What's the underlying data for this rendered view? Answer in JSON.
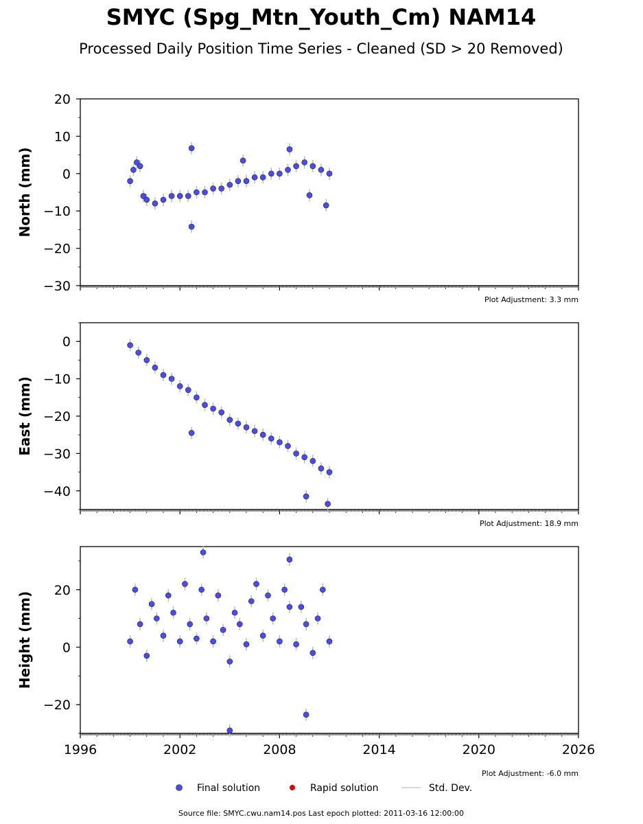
{
  "figure": {
    "title": "SMYC (Spg_Mtn_Youth_Cm) NAM14",
    "subtitle": "Processed Daily Position Time Series - Cleaned (SD > 20 Removed)",
    "source_note": "Source file: SMYC.cwu.nam14.pos  Last epoch plotted: 2011-03-16 12:00:00"
  },
  "legend": {
    "final": "Final solution",
    "rapid": "Rapid solution",
    "std": "Std. Dev."
  },
  "colors": {
    "final": "#4b4bf5",
    "rapid": "#e00000",
    "std": "#bbbbbb"
  },
  "chart_data": [
    {
      "type": "scatter",
      "ylabel": "North (mm)",
      "adjustment": "Plot Adjustment: 3.3 mm",
      "xlim": [
        1996,
        2026
      ],
      "ylim": [
        -30,
        20
      ],
      "yticks": [
        20,
        10,
        0,
        -10,
        -20,
        -30
      ],
      "ytick_labels": [
        "20",
        "10",
        "0",
        "−10",
        "−20",
        "−30"
      ],
      "series": [
        {
          "name": "Final solution",
          "x": [
            1999.0,
            1999.2,
            1999.4,
            1999.6,
            1999.8,
            2000.0,
            2000.5,
            2001.0,
            2001.5,
            2002.0,
            2002.5,
            2003.0,
            2003.5,
            2004.0,
            2004.5,
            2005.0,
            2005.5,
            2006.0,
            2006.5,
            2007.0,
            2007.5,
            2008.0,
            2008.5,
            2009.0,
            2009.5,
            2010.0,
            2010.5,
            2011.0,
            2002.7,
            2002.7,
            2005.8,
            2008.6,
            2009.8,
            2010.8
          ],
          "y": [
            -2,
            1,
            3,
            2,
            -6,
            -7,
            -8,
            -7,
            -6,
            -6,
            -6,
            -5,
            -5,
            -4,
            -4,
            -3,
            -2,
            -2,
            -1,
            -1,
            0,
            0,
            1,
            2,
            3,
            2,
            1,
            0,
            6.8,
            -14.2,
            3.5,
            6.5,
            -5.8,
            -8.5
          ]
        }
      ]
    },
    {
      "type": "scatter",
      "ylabel": "East (mm)",
      "adjustment": "Plot Adjustment: 18.9 mm",
      "xlim": [
        1996,
        2026
      ],
      "ylim": [
        -45,
        5
      ],
      "yticks": [
        0,
        -10,
        -20,
        -30,
        -40
      ],
      "ytick_labels": [
        "0",
        "−10",
        "−20",
        "−30",
        "−40"
      ],
      "series": [
        {
          "name": "Final solution",
          "x": [
            1999.0,
            1999.5,
            2000.0,
            2000.5,
            2001.0,
            2001.5,
            2002.0,
            2002.5,
            2003.0,
            2003.5,
            2004.0,
            2004.5,
            2005.0,
            2005.5,
            2006.0,
            2006.5,
            2007.0,
            2007.5,
            2008.0,
            2008.5,
            2009.0,
            2009.5,
            2010.0,
            2010.5,
            2011.0,
            2002.7,
            2009.6,
            2010.9
          ],
          "y": [
            -1,
            -3,
            -5,
            -7,
            -9,
            -10,
            -12,
            -13,
            -15,
            -17,
            -18,
            -19,
            -21,
            -22,
            -23,
            -24,
            -25,
            -26,
            -27,
            -28,
            -30,
            -31,
            -32,
            -34,
            -35,
            -24.5,
            -41.5,
            -43.5
          ]
        }
      ]
    },
    {
      "type": "scatter",
      "ylabel": "Height (mm)",
      "adjustment": "Plot Adjustment: -6.0 mm",
      "xlim": [
        1996,
        2026
      ],
      "ylim": [
        -30,
        35
      ],
      "yticks": [
        20,
        0,
        -20
      ],
      "ytick_labels": [
        "20",
        "0",
        "−20"
      ],
      "xticks": [
        1996,
        2002,
        2008,
        2014,
        2020,
        2026
      ],
      "xtick_labels": [
        "1996",
        "2002",
        "2008",
        "2014",
        "2020",
        "2026"
      ],
      "series": [
        {
          "name": "Final solution",
          "x": [
            1999.0,
            1999.3,
            1999.6,
            2000.0,
            2000.3,
            2000.6,
            2001.0,
            2001.3,
            2001.6,
            2002.0,
            2002.3,
            2002.6,
            2003.0,
            2003.3,
            2003.6,
            2004.0,
            2004.3,
            2004.6,
            2005.0,
            2005.3,
            2005.6,
            2006.0,
            2006.3,
            2006.6,
            2007.0,
            2007.3,
            2007.6,
            2008.0,
            2008.3,
            2008.6,
            2009.0,
            2009.3,
            2009.6,
            2010.0,
            2010.3,
            2010.6,
            2011.0,
            2005.0,
            2003.4,
            2009.6,
            2008.6
          ],
          "y": [
            2,
            20,
            8,
            -3,
            15,
            10,
            4,
            18,
            12,
            2,
            22,
            8,
            3,
            20,
            10,
            2,
            18,
            6,
            -5,
            12,
            8,
            1,
            16,
            22,
            4,
            18,
            10,
            2,
            20,
            14,
            1,
            14,
            8,
            -2,
            10,
            20,
            2,
            -29,
            33,
            -23.5,
            30.5
          ]
        }
      ]
    }
  ]
}
